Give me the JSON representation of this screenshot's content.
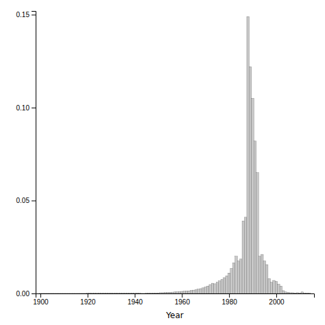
{
  "chart_data": {
    "type": "bar",
    "xlabel": "Year",
    "x": [
      1900,
      1901,
      1902,
      1903,
      1904,
      1905,
      1906,
      1907,
      1908,
      1909,
      1910,
      1911,
      1912,
      1913,
      1914,
      1915,
      1916,
      1917,
      1918,
      1919,
      1920,
      1921,
      1922,
      1923,
      1924,
      1925,
      1926,
      1927,
      1928,
      1929,
      1930,
      1931,
      1932,
      1933,
      1934,
      1935,
      1936,
      1937,
      1938,
      1939,
      1940,
      1941,
      1942,
      1943,
      1944,
      1945,
      1946,
      1947,
      1948,
      1949,
      1950,
      1951,
      1952,
      1953,
      1954,
      1955,
      1956,
      1957,
      1958,
      1959,
      1960,
      1961,
      1962,
      1963,
      1964,
      1965,
      1966,
      1967,
      1968,
      1969,
      1970,
      1971,
      1972,
      1973,
      1974,
      1975,
      1976,
      1977,
      1978,
      1979,
      1980,
      1981,
      1982,
      1983,
      1984,
      1985,
      1986,
      1987,
      1988,
      1989,
      1990,
      1991,
      1992,
      1993,
      1994,
      1995,
      1996,
      1997,
      1998,
      1999,
      2000,
      2001,
      2002,
      2003,
      2004,
      2005,
      2006,
      2007,
      2008,
      2009,
      2010,
      2011,
      2012,
      2013,
      2014
    ],
    "values": [
      5e-05,
      5e-05,
      5e-05,
      5e-05,
      5e-05,
      5e-05,
      5e-05,
      5e-05,
      5e-05,
      5e-05,
      5e-05,
      5e-05,
      5e-05,
      5e-05,
      5e-05,
      5e-05,
      5e-05,
      5e-05,
      5e-05,
      5e-05,
      0.0001,
      0.0001,
      0.0001,
      0.0001,
      0.0001,
      0.0001,
      0.0001,
      0.0001,
      0.0001,
      0.0001,
      0.0001,
      0.0001,
      0.0001,
      0.0001,
      0.0001,
      0.0001,
      0.0001,
      0.0001,
      0.0001,
      0.0001,
      0.0001,
      0.0001,
      0.0001,
      5e-05,
      5e-05,
      0.0001,
      0.0001,
      0.0002,
      0.0002,
      0.0003,
      0.0003,
      0.0004,
      0.0004,
      0.0005,
      0.0006,
      0.0006,
      0.0007,
      0.0008,
      0.0009,
      0.001,
      0.0011,
      0.0012,
      0.0013,
      0.0014,
      0.0016,
      0.0018,
      0.002,
      0.0023,
      0.0026,
      0.003,
      0.0035,
      0.004,
      0.0048,
      0.0055,
      0.0052,
      0.006,
      0.0068,
      0.0075,
      0.0085,
      0.0095,
      0.011,
      0.0135,
      0.0165,
      0.02,
      0.0175,
      0.0185,
      0.039,
      0.041,
      0.149,
      0.122,
      0.105,
      0.082,
      0.065,
      0.02,
      0.021,
      0.0175,
      0.0155,
      0.008,
      0.006,
      0.007,
      0.0065,
      0.005,
      0.004,
      0.0015,
      0.0008,
      0.0006,
      0.0004,
      0.0004,
      0.0003,
      0.0004,
      0.0003,
      0.0008,
      0.0002,
      0.0002,
      0.0001
    ],
    "color": "#c8c8c8",
    "xlim": [
      1898,
      2016
    ],
    "xticks": [
      1900,
      1920,
      1940,
      1960,
      1980,
      2000
    ],
    "ylim": [
      0,
      0.152
    ],
    "yticks": [
      {
        "value": 0,
        "label": "0.00"
      },
      0.05,
      {
        "value": 0.1,
        "label": "0.10"
      },
      0.15
    ]
  }
}
